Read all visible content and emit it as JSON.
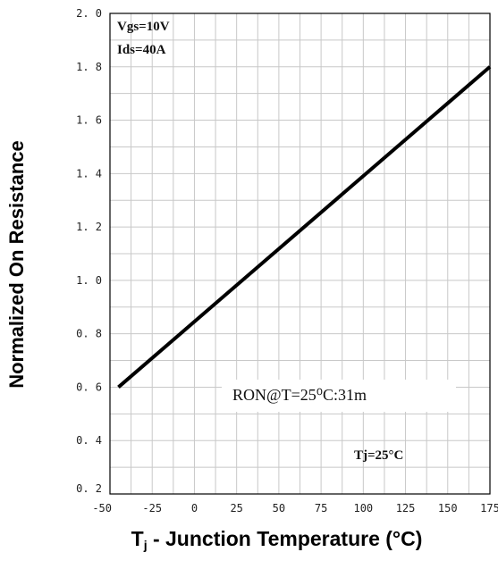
{
  "chart_data": {
    "type": "line",
    "xlabel_base": "T",
    "xlabel_sub": "j",
    "xlabel_rest": " - Junction Temperature (°C)",
    "ylabel": "Normalized On Resistance",
    "xlim": [
      -50,
      175
    ],
    "ylim": [
      0.2,
      2.0
    ],
    "x_ticks": [
      "-50",
      "-25",
      "0",
      "25",
      "50",
      "75",
      "100",
      "125",
      "150",
      "175"
    ],
    "y_ticks": [
      "0.2",
      "0.4",
      "0.6",
      "0.8",
      "1.0",
      "1.2",
      "1.4",
      "1.6",
      "1.8",
      "2.0"
    ],
    "grid": true,
    "series": [
      {
        "x": [
          -45,
          175
        ],
        "y": [
          0.6,
          1.8
        ]
      }
    ],
    "annotations": {
      "vgs": "Vgs=10V",
      "ids": "Ids=40A",
      "ron": "RON@T=25⁰C:31m",
      "tj": "Tj=25°C"
    },
    "colors": {
      "line": "#000000",
      "grid": "#c8c8c8",
      "frame": "#000000"
    }
  }
}
